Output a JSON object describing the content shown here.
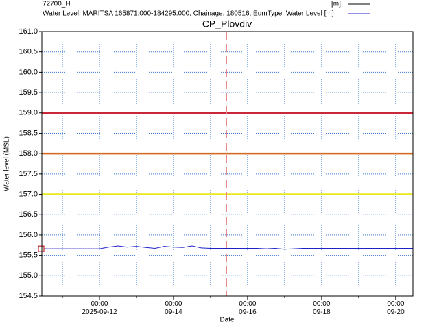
{
  "chart_data": {
    "type": "line",
    "header": "72700_H",
    "unit_label": "[m]",
    "title": "CP_Plovdiv",
    "ylabel": "Water level (MSL)",
    "xlabel": "Date",
    "xlim": [
      "2025-09-10T10:40",
      "2025-09-20T11:10"
    ],
    "ylim": [
      154.5,
      161.0
    ],
    "yticks": [
      {
        "value": 154.5,
        "label": "154.5"
      },
      {
        "value": 155,
        "label": "155.0"
      },
      {
        "value": 155.5,
        "label": "155.5"
      },
      {
        "value": 156,
        "label": "156.0"
      },
      {
        "value": 156.5,
        "label": "156.5"
      },
      {
        "value": 157,
        "label": "157.0"
      },
      {
        "value": 157.5,
        "label": "157.5"
      },
      {
        "value": 158,
        "label": "158.0"
      },
      {
        "value": 158.5,
        "label": "158.5"
      },
      {
        "value": 159,
        "label": "159.0"
      },
      {
        "value": 159.5,
        "label": "159.5"
      },
      {
        "value": 160,
        "label": "160.0"
      },
      {
        "value": 160.5,
        "label": "160.5"
      },
      {
        "value": 161,
        "label": "161.0"
      }
    ],
    "xticks": [
      {
        "value": "2025-09-12T00:00",
        "label": "00:00 2025-09-12"
      },
      {
        "value": "2025-09-14T00:00",
        "label": "00:00 09-14"
      },
      {
        "value": "2025-09-16T00:00",
        "label": "00:00 09-16"
      },
      {
        "value": "2025-09-18T00:00",
        "label": "00:00 09-18"
      },
      {
        "value": "2025-09-20T00:00",
        "label": "00:00 09-20"
      }
    ],
    "xgrid": [
      "2025-09-11T00:00",
      "2025-09-13T00:00",
      "2025-09-15T00:00",
      "2025-09-17T00:00",
      "2025-09-19T00:00"
    ],
    "grid": true,
    "hlines": [
      {
        "value": 159.0,
        "color": "#c8283a"
      },
      {
        "value": 158.0,
        "color": "#d2691e"
      },
      {
        "value": 157.0,
        "color": "#e8e820"
      }
    ],
    "vline": {
      "x": "2025-09-15T10:15",
      "color": "#e88a8a"
    },
    "series": [
      {
        "name": "Water Level, MARITSA 165871.000-184295.000; Chainage: 180516; EumType: Water Level [m]",
        "color": "#2020c8",
        "x": [
          "2025-09-10T12:00",
          "2025-09-10T18:00",
          "2025-09-11T00:00",
          "2025-09-11T06:00",
          "2025-09-11T12:00",
          "2025-09-11T18:00",
          "2025-09-12T00:00",
          "2025-09-12T06:00",
          "2025-09-12T12:00",
          "2025-09-12T18:00",
          "2025-09-13T00:00",
          "2025-09-13T06:00",
          "2025-09-13T12:00",
          "2025-09-13T18:00",
          "2025-09-14T00:00",
          "2025-09-14T06:00",
          "2025-09-14T12:00",
          "2025-09-14T18:00",
          "2025-09-15T00:00",
          "2025-09-15T06:00",
          "2025-09-15T12:00",
          "2025-09-15T18:00",
          "2025-09-16T00:00",
          "2025-09-16T06:00",
          "2025-09-16T12:00",
          "2025-09-16T18:00",
          "2025-09-17T00:00",
          "2025-09-17T06:00",
          "2025-09-17T12:00",
          "2025-09-17T18:00",
          "2025-09-18T00:00",
          "2025-09-18T06:00",
          "2025-09-18T12:00",
          "2025-09-18T18:00",
          "2025-09-19T00:00",
          "2025-09-19T06:00",
          "2025-09-19T12:00",
          "2025-09-19T18:00",
          "2025-09-20T00:00",
          "2025-09-20T06:00",
          "2025-09-20T11:00"
        ],
        "values": [
          155.66,
          155.66,
          155.66,
          155.66,
          155.66,
          155.66,
          155.66,
          155.7,
          155.73,
          155.7,
          155.72,
          155.69,
          155.67,
          155.72,
          155.7,
          155.69,
          155.73,
          155.68,
          155.67,
          155.67,
          155.67,
          155.67,
          155.67,
          155.67,
          155.66,
          155.67,
          155.65,
          155.66,
          155.67,
          155.67,
          155.67,
          155.67,
          155.67,
          155.67,
          155.67,
          155.67,
          155.67,
          155.67,
          155.67,
          155.67,
          155.67
        ]
      }
    ]
  }
}
